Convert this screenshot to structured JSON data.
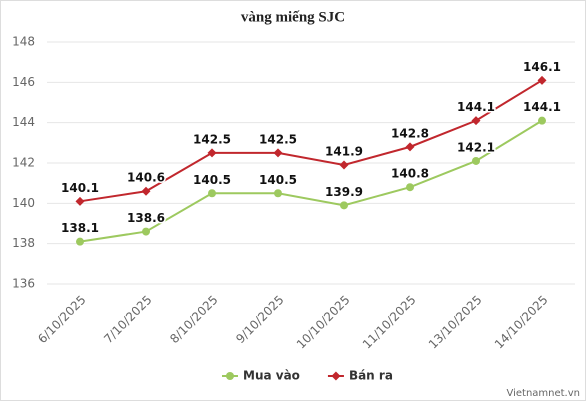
{
  "chart_data": {
    "type": "line",
    "title": "vàng miếng SJC",
    "categories": [
      "6/10/2025",
      "7/10/2025",
      "8/10/2025",
      "9/10/2025",
      "10/10/2025",
      "11/10/2025",
      "13/10/2025",
      "14/10/2025"
    ],
    "series": [
      {
        "name": "Mua vào",
        "color": "#9dc95f",
        "marker": "circle",
        "values": [
          138.1,
          138.6,
          140.5,
          140.5,
          139.9,
          140.8,
          142.1,
          144.1
        ]
      },
      {
        "name": "Bán ra",
        "color": "#c1272d",
        "marker": "diamond",
        "values": [
          140.1,
          140.6,
          142.5,
          142.5,
          141.9,
          142.8,
          144.1,
          146.1
        ]
      }
    ],
    "ylim": [
      136,
      148
    ],
    "yticks": [
      136,
      138,
      140,
      142,
      144,
      146,
      148
    ],
    "grid": true,
    "legend": "bottom",
    "credit": "Vietnamnet.vn"
  }
}
